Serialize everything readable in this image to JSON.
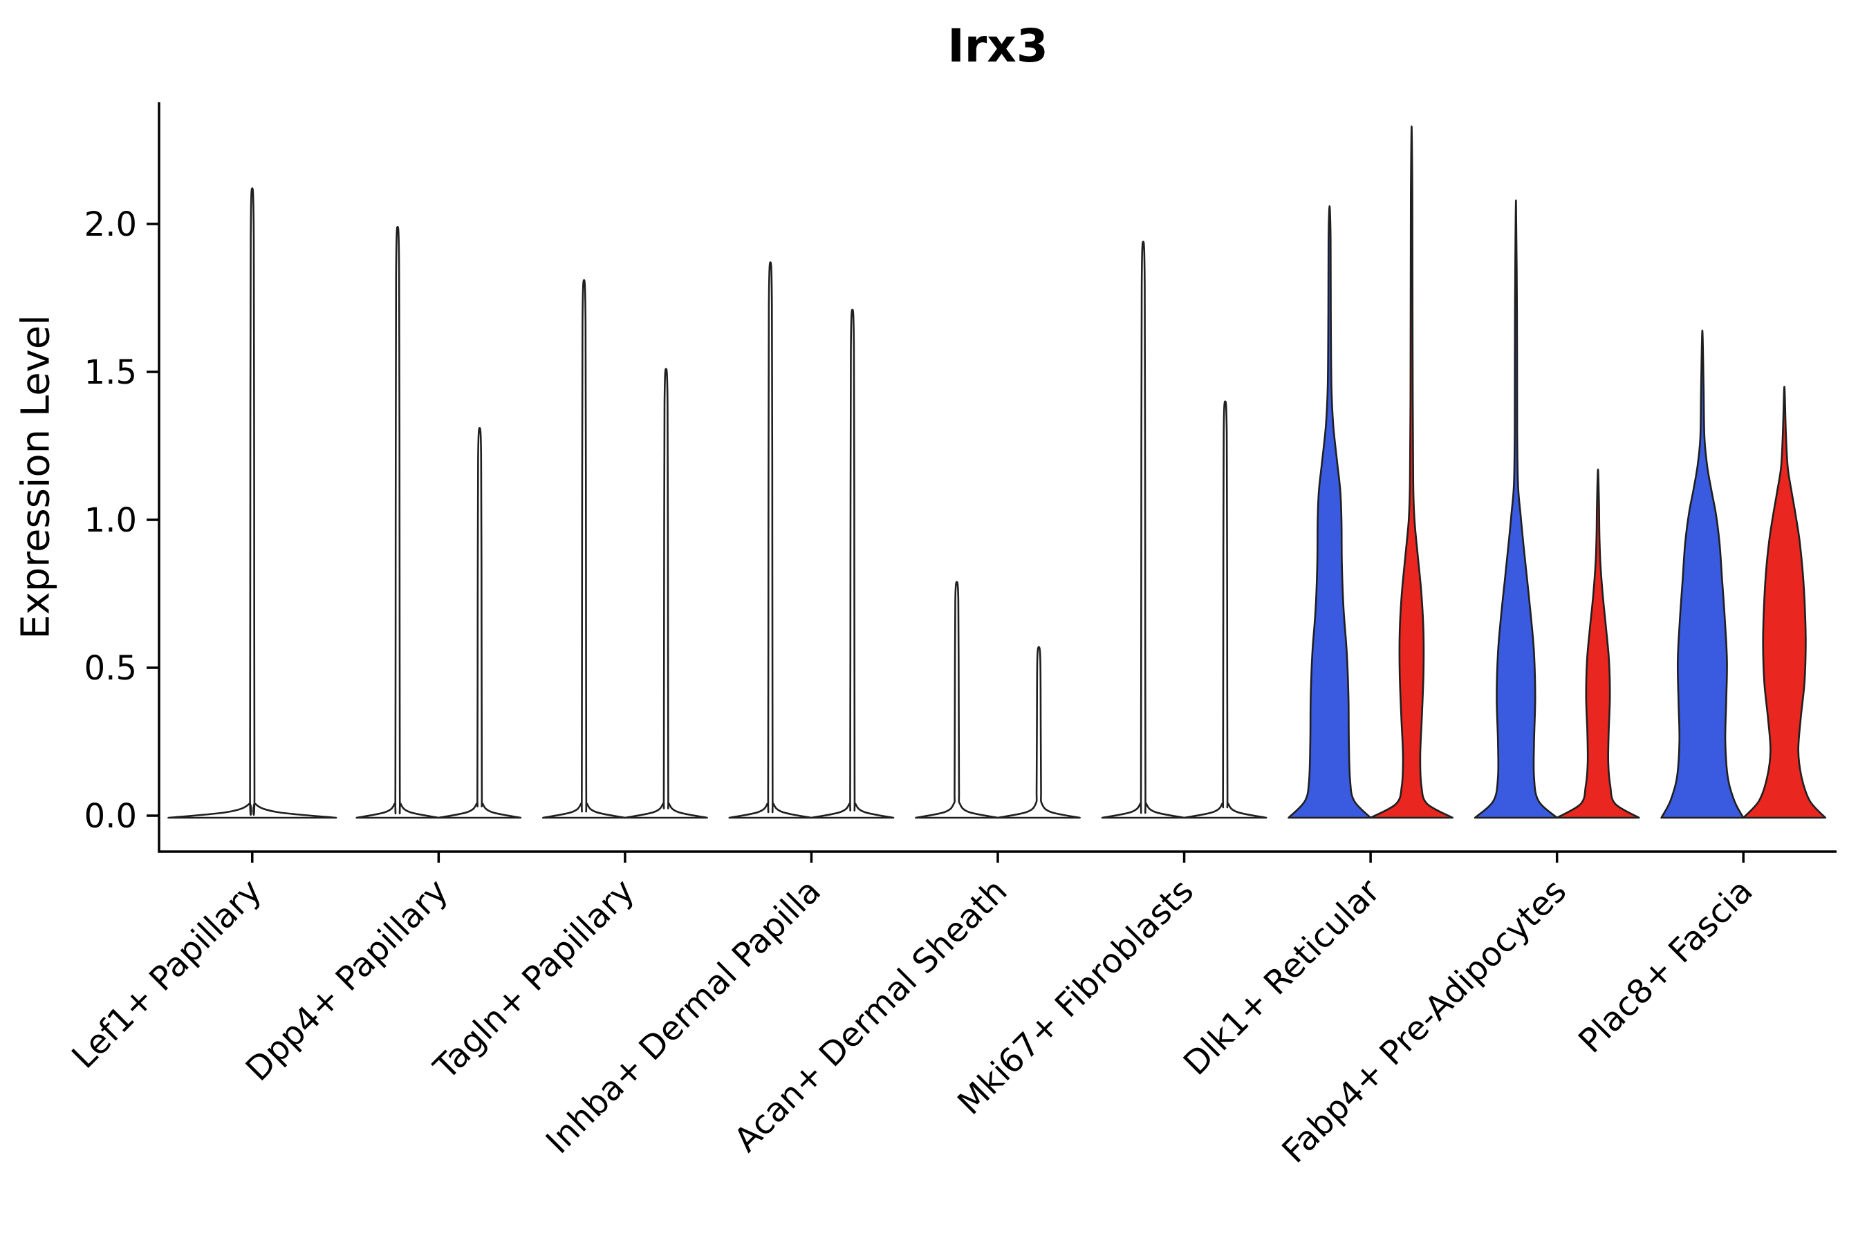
{
  "figure": {
    "title": "Irx3",
    "ylabel": "Expression Level"
  },
  "chart_data": {
    "type": "violin",
    "title": "Irx3",
    "xlabel": "",
    "ylabel": "Expression Level",
    "ylim": [
      -0.12,
      2.41
    ],
    "yticks": [
      0.0,
      0.5,
      1.0,
      1.5,
      2.0
    ],
    "ytick_labels": [
      "0.0",
      "0.5",
      "1.0",
      "1.5",
      "2.0"
    ],
    "grid": false,
    "legend_position": "none",
    "edge_color": "#1f1f1f",
    "background_color": "#ffffff",
    "groups": [
      {
        "name": "group-blue",
        "color": "#3A5BDF",
        "side": "left"
      },
      {
        "name": "group-red",
        "color": "#E9261F",
        "side": "right"
      }
    ],
    "categories": [
      "Lef1+ Papillary",
      "Dpp4+ Papillary",
      "Tagln+ Papillary",
      "Inhba+ Dermal Papilla",
      "Acan+ Dermal Sheath",
      "Mki67+ Fibroblasts",
      "Dlk1+ Reticular",
      "Fabp4+ Pre-Adipocytes",
      "Plac8+ Fascia"
    ],
    "violins": [
      {
        "category": "Lef1+ Papillary",
        "parts": [
          {
            "group": "single",
            "style": "spike",
            "max_expression": 2.12,
            "offset": 0.0,
            "width": 0.9
          }
        ]
      },
      {
        "category": "Dpp4+ Papillary",
        "parts": [
          {
            "group": "group-blue",
            "style": "spike",
            "max_expression": 1.99,
            "offset": -0.22,
            "width": 0.44
          },
          {
            "group": "group-red",
            "style": "spike",
            "max_expression": 1.31,
            "offset": 0.22,
            "width": 0.44
          }
        ]
      },
      {
        "category": "Tagln+ Papillary",
        "parts": [
          {
            "group": "group-blue",
            "style": "spike",
            "max_expression": 1.81,
            "offset": -0.22,
            "width": 0.44
          },
          {
            "group": "group-red",
            "style": "spike",
            "max_expression": 1.51,
            "offset": 0.22,
            "width": 0.44
          }
        ]
      },
      {
        "category": "Inhba+ Dermal Papilla",
        "parts": [
          {
            "group": "group-blue",
            "style": "spike",
            "max_expression": 1.87,
            "offset": -0.22,
            "width": 0.44
          },
          {
            "group": "group-red",
            "style": "spike",
            "max_expression": 1.71,
            "offset": 0.22,
            "width": 0.44
          }
        ]
      },
      {
        "category": "Acan+ Dermal Sheath",
        "parts": [
          {
            "group": "group-blue",
            "style": "spike",
            "max_expression": 0.79,
            "offset": -0.22,
            "width": 0.44
          },
          {
            "group": "group-red",
            "style": "spike",
            "max_expression": 0.57,
            "offset": 0.22,
            "width": 0.44
          }
        ]
      },
      {
        "category": "Mki67+ Fibroblasts",
        "parts": [
          {
            "group": "group-blue",
            "style": "spike",
            "max_expression": 1.94,
            "offset": -0.22,
            "width": 0.44
          },
          {
            "group": "group-red",
            "style": "spike",
            "max_expression": 1.4,
            "offset": 0.22,
            "width": 0.44
          }
        ]
      },
      {
        "category": "Dlk1+ Reticular",
        "parts": [
          {
            "group": "group-blue",
            "style": "density",
            "max_expression": 2.06,
            "offset": -0.22,
            "width": 0.44,
            "profile": [
              [
                0,
                1.0
              ],
              [
                0.05,
                0.6
              ],
              [
                0.12,
                0.5
              ],
              [
                0.25,
                0.47
              ],
              [
                0.4,
                0.46
              ],
              [
                0.55,
                0.42
              ],
              [
                0.7,
                0.34
              ],
              [
                0.85,
                0.3
              ],
              [
                1.0,
                0.29
              ],
              [
                1.1,
                0.26
              ],
              [
                1.2,
                0.18
              ],
              [
                1.32,
                0.09
              ],
              [
                1.45,
                0.045
              ],
              [
                1.7,
                0.03
              ],
              [
                1.95,
                0.025
              ],
              [
                2.06,
                0
              ]
            ]
          },
          {
            "group": "group-red",
            "style": "density",
            "max_expression": 2.33,
            "offset": 0.22,
            "width": 0.44,
            "profile": [
              [
                0,
                1.0
              ],
              [
                0.04,
                0.38
              ],
              [
                0.1,
                0.24
              ],
              [
                0.2,
                0.21
              ],
              [
                0.33,
                0.25
              ],
              [
                0.48,
                0.29
              ],
              [
                0.62,
                0.29
              ],
              [
                0.75,
                0.24
              ],
              [
                0.88,
                0.15
              ],
              [
                1.0,
                0.07
              ],
              [
                1.12,
                0.04
              ],
              [
                1.4,
                0.028
              ],
              [
                1.8,
                0.022
              ],
              [
                2.1,
                0.018
              ],
              [
                2.33,
                0
              ]
            ]
          }
        ]
      },
      {
        "category": "Fabp4+ Pre-Adipocytes",
        "parts": [
          {
            "group": "group-blue",
            "style": "density",
            "max_expression": 2.08,
            "offset": -0.22,
            "width": 0.44,
            "profile": [
              [
                0,
                1.0
              ],
              [
                0.05,
                0.55
              ],
              [
                0.13,
                0.44
              ],
              [
                0.25,
                0.44
              ],
              [
                0.4,
                0.47
              ],
              [
                0.55,
                0.44
              ],
              [
                0.68,
                0.36
              ],
              [
                0.8,
                0.27
              ],
              [
                0.92,
                0.18
              ],
              [
                1.02,
                0.11
              ],
              [
                1.12,
                0.05
              ],
              [
                1.3,
                0.03
              ],
              [
                1.7,
                0.024
              ],
              [
                2.08,
                0
              ]
            ]
          },
          {
            "group": "group-red",
            "style": "density",
            "max_expression": 1.17,
            "offset": 0.22,
            "width": 0.44,
            "profile": [
              [
                0,
                1.0
              ],
              [
                0.04,
                0.42
              ],
              [
                0.1,
                0.3
              ],
              [
                0.18,
                0.25
              ],
              [
                0.28,
                0.26
              ],
              [
                0.4,
                0.29
              ],
              [
                0.52,
                0.27
              ],
              [
                0.63,
                0.2
              ],
              [
                0.74,
                0.12
              ],
              [
                0.85,
                0.06
              ],
              [
                0.95,
                0.035
              ],
              [
                1.05,
                0.025
              ],
              [
                1.17,
                0
              ]
            ]
          }
        ]
      },
      {
        "category": "Plac8+ Fascia",
        "parts": [
          {
            "group": "group-blue",
            "style": "density",
            "max_expression": 1.64,
            "offset": -0.22,
            "width": 0.44,
            "profile": [
              [
                0,
                1.0
              ],
              [
                0.05,
                0.78
              ],
              [
                0.13,
                0.62
              ],
              [
                0.25,
                0.56
              ],
              [
                0.38,
                0.58
              ],
              [
                0.52,
                0.6
              ],
              [
                0.66,
                0.55
              ],
              [
                0.8,
                0.48
              ],
              [
                0.92,
                0.42
              ],
              [
                1.02,
                0.33
              ],
              [
                1.1,
                0.22
              ],
              [
                1.18,
                0.12
              ],
              [
                1.28,
                0.05
              ],
              [
                1.45,
                0.03
              ],
              [
                1.64,
                0
              ]
            ]
          },
          {
            "group": "group-red",
            "style": "density",
            "max_expression": 1.45,
            "offset": 0.22,
            "width": 0.44,
            "profile": [
              [
                0,
                1.0
              ],
              [
                0.05,
                0.62
              ],
              [
                0.13,
                0.42
              ],
              [
                0.22,
                0.34
              ],
              [
                0.33,
                0.4
              ],
              [
                0.45,
                0.49
              ],
              [
                0.58,
                0.52
              ],
              [
                0.7,
                0.5
              ],
              [
                0.82,
                0.45
              ],
              [
                0.93,
                0.37
              ],
              [
                1.02,
                0.27
              ],
              [
                1.1,
                0.17
              ],
              [
                1.18,
                0.08
              ],
              [
                1.3,
                0.035
              ],
              [
                1.45,
                0
              ]
            ]
          }
        ]
      }
    ]
  }
}
